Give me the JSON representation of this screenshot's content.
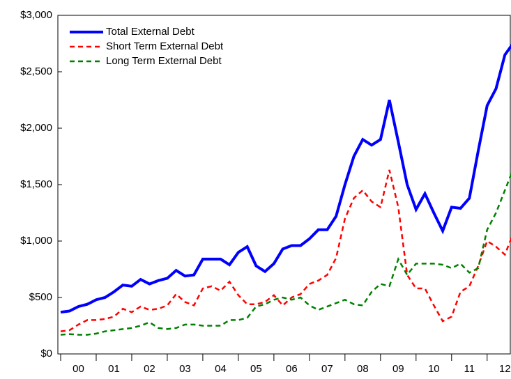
{
  "chart_data": {
    "type": "line",
    "x": [
      2000,
      2000.25,
      2000.5,
      2000.75,
      2001,
      2001.25,
      2001.5,
      2001.75,
      2002,
      2002.25,
      2002.5,
      2002.75,
      2003,
      2003.25,
      2003.5,
      2003.75,
      2004,
      2004.25,
      2004.5,
      2004.75,
      2005,
      2005.25,
      2005.5,
      2005.75,
      2006,
      2006.25,
      2006.5,
      2006.75,
      2007,
      2007.25,
      2007.5,
      2007.75,
      2008,
      2008.25,
      2008.5,
      2008.75,
      2009,
      2009.25,
      2009.5,
      2009.75,
      2010,
      2010.25,
      2010.5,
      2010.75,
      2011,
      2011.25,
      2011.5,
      2011.75,
      2012,
      2012.25,
      2012.5,
      2012.75
    ],
    "series": [
      {
        "name": "Total External Debt",
        "color": "#0000ff",
        "style": "solid",
        "values": [
          370,
          380,
          420,
          440,
          480,
          500,
          550,
          610,
          600,
          660,
          620,
          650,
          670,
          740,
          690,
          700,
          840,
          840,
          840,
          790,
          900,
          950,
          780,
          730,
          800,
          930,
          960,
          960,
          1020,
          1100,
          1100,
          1220,
          1500,
          1750,
          1900,
          1850,
          1900,
          2250,
          1880,
          1500,
          1280,
          1420,
          1250,
          1090,
          1300,
          1290,
          1380,
          1800,
          2200,
          2350,
          2650,
          2760
        ]
      },
      {
        "name": "Short Term External Debt",
        "color": "#ff0000",
        "style": "dashed",
        "values": [
          200,
          210,
          260,
          300,
          300,
          310,
          330,
          400,
          370,
          420,
          390,
          400,
          430,
          530,
          460,
          430,
          580,
          600,
          560,
          640,
          520,
          440,
          440,
          460,
          520,
          430,
          500,
          530,
          620,
          650,
          700,
          850,
          1200,
          1380,
          1450,
          1350,
          1300,
          1630,
          1300,
          700,
          580,
          580,
          430,
          290,
          330,
          550,
          600,
          780,
          1000,
          950,
          880,
          1080
        ]
      },
      {
        "name": "Long Term External Debt",
        "color": "#008000",
        "style": "dashed",
        "values": [
          170,
          175,
          170,
          170,
          180,
          200,
          210,
          220,
          230,
          250,
          280,
          230,
          220,
          230,
          260,
          260,
          250,
          250,
          250,
          300,
          300,
          320,
          420,
          440,
          480,
          500,
          480,
          500,
          430,
          390,
          420,
          450,
          480,
          440,
          430,
          550,
          620,
          600,
          840,
          700,
          800,
          800,
          800,
          790,
          760,
          800,
          720,
          760,
          1100,
          1250,
          1450,
          1650
        ]
      }
    ],
    "xlim": [
      2000,
      2012.75
    ],
    "xticks": [
      {
        "value": 2000,
        "label": "00"
      },
      {
        "value": 2001,
        "label": "01"
      },
      {
        "value": 2002,
        "label": "02"
      },
      {
        "value": 2003,
        "label": "03"
      },
      {
        "value": 2004,
        "label": "04"
      },
      {
        "value": 2005,
        "label": "05"
      },
      {
        "value": 2006,
        "label": "06"
      },
      {
        "value": 2007,
        "label": "07"
      },
      {
        "value": 2008,
        "label": "08"
      },
      {
        "value": 2009,
        "label": "09"
      },
      {
        "value": 2010,
        "label": "10"
      },
      {
        "value": 2011,
        "label": "11"
      },
      {
        "value": 2012,
        "label": "12"
      }
    ],
    "ylim": [
      0,
      3000
    ],
    "yticks": [
      {
        "value": 0,
        "label": "$0"
      },
      {
        "value": 500,
        "label": "$500"
      },
      {
        "value": 1000,
        "label": "$1,000"
      },
      {
        "value": 1500,
        "label": "$1,500"
      },
      {
        "value": 2000,
        "label": "$2,000"
      },
      {
        "value": 2500,
        "label": "$2,500"
      },
      {
        "value": 3000,
        "label": "$3,000"
      }
    ],
    "grid": false,
    "legend": "upper left"
  }
}
